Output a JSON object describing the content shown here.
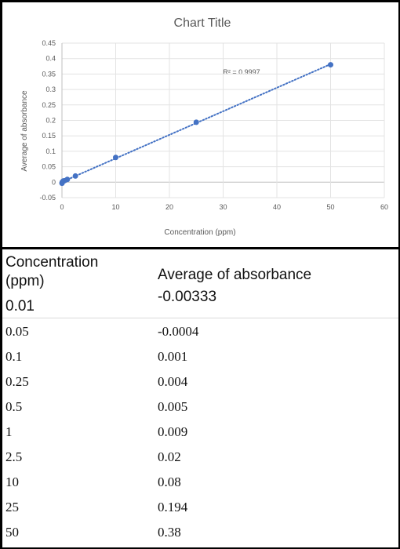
{
  "chart_data": {
    "type": "scatter",
    "title": "Chart Title",
    "xlabel": "Concentration (ppm)",
    "ylabel": "Average of absorbance",
    "xlim": [
      0,
      60
    ],
    "ylim": [
      -0.05,
      0.45
    ],
    "xticks": [
      "0",
      "10",
      "20",
      "30",
      "40",
      "50",
      "60"
    ],
    "yticks": [
      "-0.05",
      "0",
      "0.05",
      "0.1",
      "0.15",
      "0.2",
      "0.25",
      "0.3",
      "0.35",
      "0.4",
      "0.45"
    ],
    "grid": true,
    "trendline": "linear",
    "r_squared_label": "R² = 0.9997",
    "series_color": "#4472c4",
    "x": [
      0.01,
      0.05,
      0.1,
      0.25,
      0.5,
      1,
      2.5,
      10,
      25,
      50
    ],
    "y": [
      -0.00333,
      -0.0004,
      0.001,
      0.004,
      0.005,
      0.009,
      0.02,
      0.08,
      0.194,
      0.38
    ]
  },
  "table": {
    "header_concentration": "Concentration (ppm)",
    "header_absorbance": "Average of absorbance",
    "first_concentration": "0.01",
    "first_absorbance": "-0.00333",
    "rows": [
      {
        "conc": "0.05",
        "abs": "-0.0004"
      },
      {
        "conc": "0.1",
        "abs": "0.001"
      },
      {
        "conc": "0.25",
        "abs": "0.004"
      },
      {
        "conc": "0.5",
        "abs": "0.005"
      },
      {
        "conc": "1",
        "abs": "0.009"
      },
      {
        "conc": "2.5",
        "abs": "0.02"
      },
      {
        "conc": "10",
        "abs": "0.08"
      },
      {
        "conc": "25",
        "abs": "0.194"
      },
      {
        "conc": "50",
        "abs": "0.38"
      }
    ]
  }
}
